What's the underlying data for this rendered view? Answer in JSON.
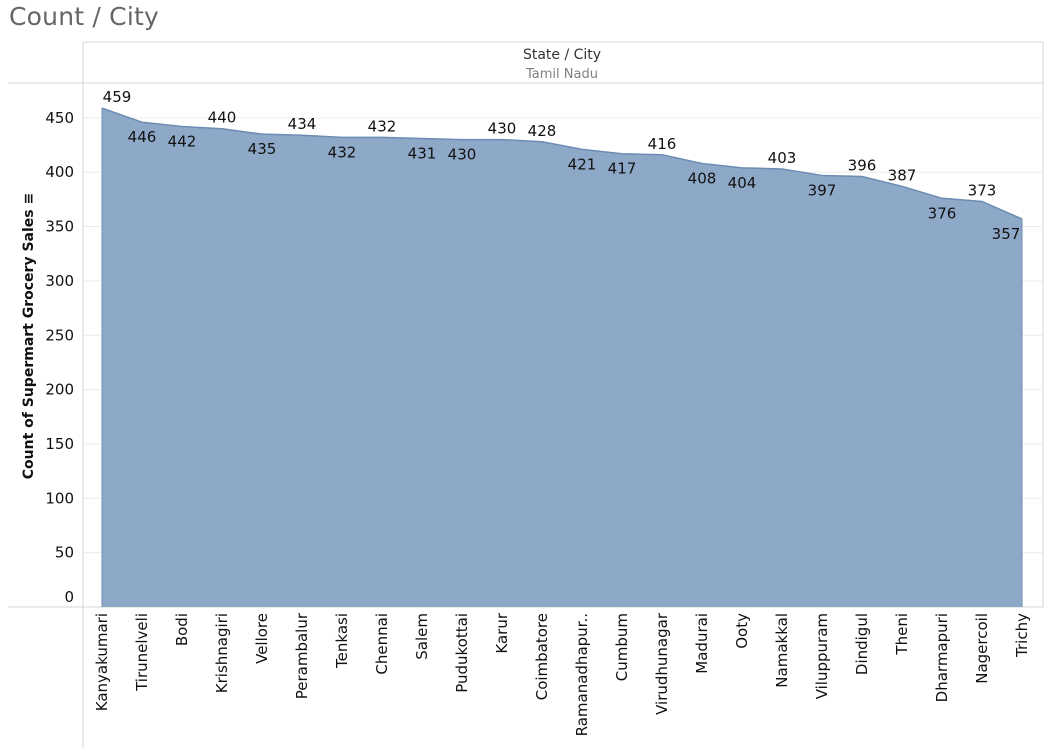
{
  "sheet_title": "Count / City",
  "header": {
    "field_label": "State / City",
    "value": "Tamil Nadu"
  },
  "colors": {
    "area_fill": "#8ea9c8",
    "area_line": "#6b8cb3",
    "grid": "#ececec",
    "divider": "#d4d4d4"
  },
  "chart_data": {
    "type": "area",
    "title": "Count / City",
    "xlabel": "",
    "ylabel": "Count of Supermart Grocery Sales",
    "ylabel_sort_indicator": "≡",
    "ylim": [
      0,
      480
    ],
    "yticks": [
      0,
      50,
      100,
      150,
      200,
      250,
      300,
      350,
      400,
      450
    ],
    "grid": "horizontal",
    "categories": [
      "Kanyakumari",
      "Tirunelveli",
      "Bodi",
      "Krishnagiri",
      "Vellore",
      "Perambalur",
      "Tenkasi",
      "Chennai",
      "Salem",
      "Pudukottai",
      "Karur",
      "Coimbatore",
      "Ramanadhapur..",
      "Cumbum",
      "Virudhunagar",
      "Madurai",
      "Ooty",
      "Namakkal",
      "Viluppuram",
      "Dindigul",
      "Theni",
      "Dharmapuri",
      "Nagercoil",
      "Trichy"
    ],
    "values": [
      459,
      446,
      442,
      440,
      435,
      434,
      432,
      432,
      431,
      430,
      430,
      428,
      421,
      417,
      416,
      408,
      404,
      403,
      397,
      396,
      387,
      376,
      373,
      357
    ],
    "label_positions": [
      "above",
      "below",
      "below",
      "above",
      "below",
      "above",
      "below",
      "above",
      "below",
      "below",
      "above",
      "above",
      "below",
      "below",
      "above",
      "below",
      "below",
      "above",
      "below",
      "above",
      "above",
      "below",
      "above",
      "below"
    ]
  }
}
